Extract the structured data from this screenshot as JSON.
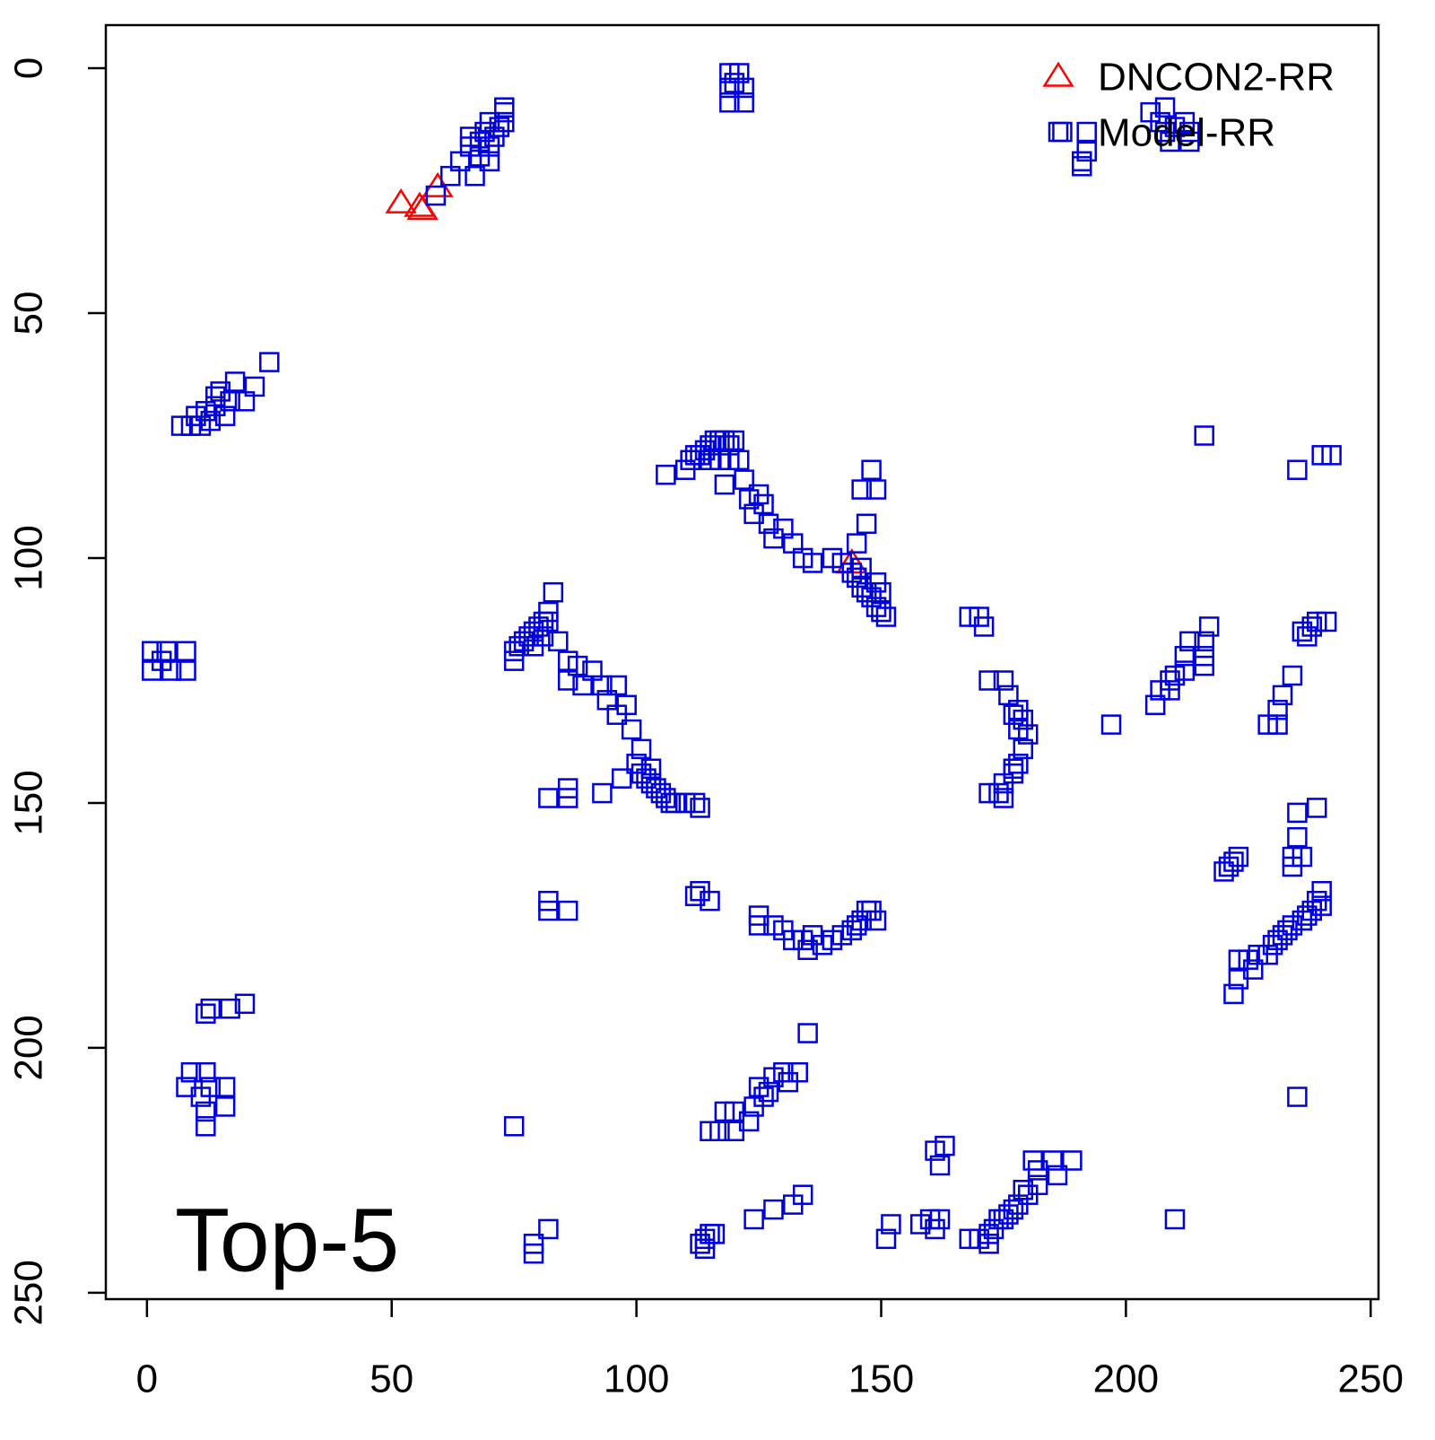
{
  "chart_data": {
    "type": "scatter",
    "annotation": "Top-5",
    "legend": "top-right",
    "xlim": [
      -8.4,
      251.6
    ],
    "xticks": [
      0,
      50,
      100,
      150,
      200,
      250
    ],
    "ylim": [
      251.3,
      -8.8
    ],
    "yticks": [
      0,
      50,
      100,
      150,
      200,
      250
    ],
    "series": [
      {
        "name": "DNCON2-RR",
        "color": "#ff0000",
        "marker": "triangle",
        "x": [
          51.9,
          55.7,
          56.3,
          59.4,
          144
        ],
        "y": [
          27.5,
          28.2,
          28.8,
          24.2,
          101
        ]
      },
      {
        "name": "Model-RR",
        "color": "#0000dd",
        "marker": "square",
        "x": [
          59,
          62,
          64,
          66,
          66,
          67,
          68,
          68,
          69,
          70,
          70,
          70,
          71,
          72,
          73,
          73,
          73,
          119,
          121,
          119,
          122,
          119,
          122,
          120,
          187,
          192,
          192,
          191,
          191,
          205,
          207,
          208,
          209,
          208,
          212,
          213,
          213,
          210,
          25,
          22,
          20,
          18,
          17,
          16,
          15,
          14,
          13,
          11,
          9,
          7,
          10,
          12,
          14,
          106,
          110,
          111,
          112,
          113,
          114,
          115,
          116,
          117,
          118,
          119,
          120,
          115,
          117,
          119,
          121,
          118,
          122,
          123,
          124,
          125,
          126,
          127,
          128,
          130,
          132,
          134,
          136,
          140,
          142,
          144,
          145,
          146,
          147,
          148,
          149,
          150,
          151,
          149,
          150,
          146,
          145,
          147,
          146,
          148,
          149,
          1,
          1,
          4,
          5,
          8,
          8,
          3,
          83,
          82,
          81,
          80,
          79,
          78,
          77,
          76,
          75,
          75,
          79,
          81,
          82,
          84,
          86,
          86,
          88,
          89,
          91,
          93,
          94,
          96,
          96,
          98,
          99,
          101,
          100,
          101,
          102,
          103,
          104,
          105,
          106,
          107,
          108,
          110,
          112,
          113,
          103,
          97,
          93,
          86,
          86,
          82,
          168,
          170,
          171,
          172,
          175,
          176,
          177,
          178,
          179,
          178,
          180,
          179,
          178,
          177,
          175,
          174,
          172,
          175,
          177,
          197,
          216,
          235,
          240,
          242,
          217,
          216,
          216,
          213,
          212,
          212,
          210,
          209,
          207,
          206,
          209,
          216,
          241,
          239,
          238,
          237,
          236,
          234,
          232,
          231,
          229,
          231,
          239,
          235,
          235,
          234,
          236,
          234,
          222,
          221,
          223,
          220,
          240,
          239,
          238,
          237,
          236,
          234,
          233,
          232,
          231,
          230,
          229,
          227,
          225,
          223,
          226,
          223,
          222,
          240,
          82,
          82,
          86,
          112,
          113,
          115,
          125,
          125,
          128,
          130,
          132,
          134,
          135,
          136,
          138,
          140,
          142,
          144,
          145,
          146,
          147,
          148,
          149,
          20,
          17,
          13,
          12,
          8,
          9,
          12,
          13,
          16,
          16,
          12,
          12,
          11,
          135,
          235,
          133,
          130,
          128,
          127,
          125,
          124,
          123,
          120,
          118,
          117,
          115,
          120,
          126,
          131,
          75,
          163,
          161,
          162,
          189,
          185,
          186,
          182,
          181,
          182,
          179,
          180,
          178,
          177,
          176,
          175,
          174,
          173,
          172,
          170,
          168,
          172,
          160,
          162,
          161,
          158,
          152,
          151,
          210,
          134,
          132,
          128,
          124,
          115,
          114,
          113,
          114,
          116,
          82,
          79,
          79
        ],
        "y": [
          26,
          22,
          19,
          16,
          14,
          22,
          18,
          15,
          13,
          19,
          16,
          11,
          14,
          12,
          9,
          11,
          8,
          1,
          1,
          4,
          4,
          7,
          7,
          3,
          13,
          13,
          17,
          20,
          19,
          9,
          11,
          8,
          15,
          13,
          11,
          13,
          15,
          12,
          60,
          65,
          68,
          64,
          68,
          71,
          66,
          69,
          72,
          73,
          73,
          73,
          71,
          70,
          67,
          83,
          82,
          80,
          79,
          79,
          78,
          77,
          76,
          76,
          76,
          77,
          76,
          80,
          80,
          80,
          80,
          85,
          84,
          88,
          91,
          87,
          89,
          93,
          96,
          94,
          97,
          100,
          101,
          100,
          101,
          103,
          104,
          106,
          107,
          108,
          110,
          111,
          112,
          105,
          107,
          102,
          97,
          93,
          86,
          82,
          86,
          119,
          123,
          119,
          123,
          119,
          123,
          121,
          107,
          111,
          113,
          114,
          115,
          116,
          117,
          118,
          119,
          121,
          118,
          116,
          113,
          117,
          121,
          125,
          122,
          126,
          123,
          126,
          129,
          126,
          132,
          130,
          135,
          139,
          142,
          144,
          145,
          146,
          147,
          148,
          149,
          150,
          150,
          150,
          150,
          151,
          143,
          145,
          148,
          147,
          149,
          149,
          112,
          112,
          114,
          125,
          125,
          128,
          132,
          131,
          133,
          135,
          136,
          139,
          142,
          144,
          146,
          148,
          148,
          149,
          143,
          134,
          75,
          82,
          79,
          79,
          114,
          117,
          120,
          117,
          120,
          123,
          124,
          127,
          127,
          130,
          125,
          122,
          113,
          113,
          114,
          116,
          115,
          124,
          128,
          131,
          134,
          134,
          151,
          152,
          157,
          161,
          161,
          163,
          162,
          163,
          161,
          164,
          168,
          170,
          172,
          173,
          174,
          175,
          176,
          177,
          178,
          179,
          181,
          181,
          182,
          182,
          184,
          186,
          189,
          171,
          170,
          172,
          172,
          169,
          168,
          170,
          173,
          175,
          175,
          176,
          178,
          178,
          180,
          177,
          179,
          178,
          177,
          176,
          175,
          174,
          172,
          172,
          174,
          191,
          192,
          192,
          193,
          208,
          205,
          205,
          208,
          208,
          212,
          213,
          216,
          210,
          197,
          210,
          205,
          205,
          206,
          209,
          208,
          212,
          215,
          213,
          213,
          217,
          217,
          217,
          210,
          207,
          216,
          220,
          221,
          224,
          223,
          223,
          226,
          225,
          223,
          228,
          229,
          230,
          232,
          233,
          234,
          235,
          235,
          237,
          238,
          239,
          239,
          240,
          235,
          235,
          237,
          236,
          236,
          239,
          235,
          230,
          232,
          233,
          235,
          238,
          239,
          240,
          241,
          238,
          237,
          240,
          242
        ]
      }
    ]
  }
}
